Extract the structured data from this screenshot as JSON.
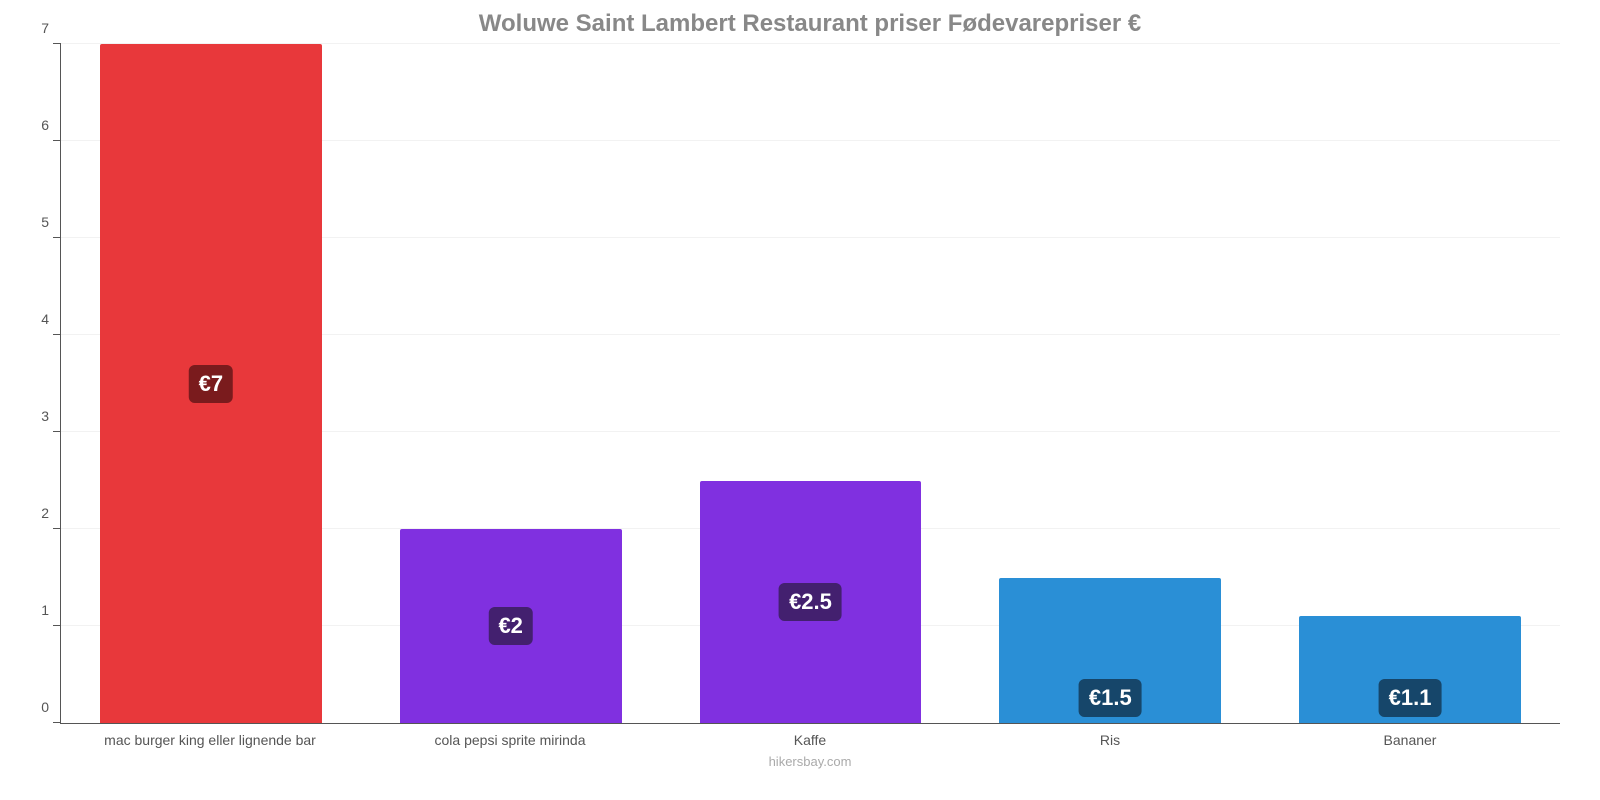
{
  "chart": {
    "type": "bar",
    "title": "Woluwe Saint Lambert Restaurant priser Fødevarepriser €",
    "title_fontsize": 24,
    "title_color": "#888888",
    "source": "hikersbay.com",
    "background_color": "#ffffff",
    "axis_color": "#555555",
    "grid_color": "#f2f2f2",
    "label_color": "#555555",
    "label_fontsize": 14,
    "ylim": [
      0,
      7
    ],
    "ytick_step": 1,
    "yticks": [
      "0",
      "1",
      "2",
      "3",
      "4",
      "5",
      "6",
      "7"
    ],
    "bar_width_pct": 74,
    "badge_fontsize": 22,
    "categories": [
      "mac burger king eller lignende bar",
      "cola pepsi sprite mirinda",
      "Kaffe",
      "Ris",
      "Bananer"
    ],
    "values": [
      7,
      2,
      2.5,
      1.5,
      1.1
    ],
    "value_labels": [
      "€7",
      "€2",
      "€2.5",
      "€1.5",
      "€1.1"
    ],
    "bar_colors": [
      "#e8383b",
      "#8030e0",
      "#8030e0",
      "#2a8fd6",
      "#2a8fd6"
    ],
    "badge_bg_colors": [
      "#7a1b1d",
      "#43206f",
      "#43206f",
      "#16466a",
      "#16466a"
    ]
  }
}
